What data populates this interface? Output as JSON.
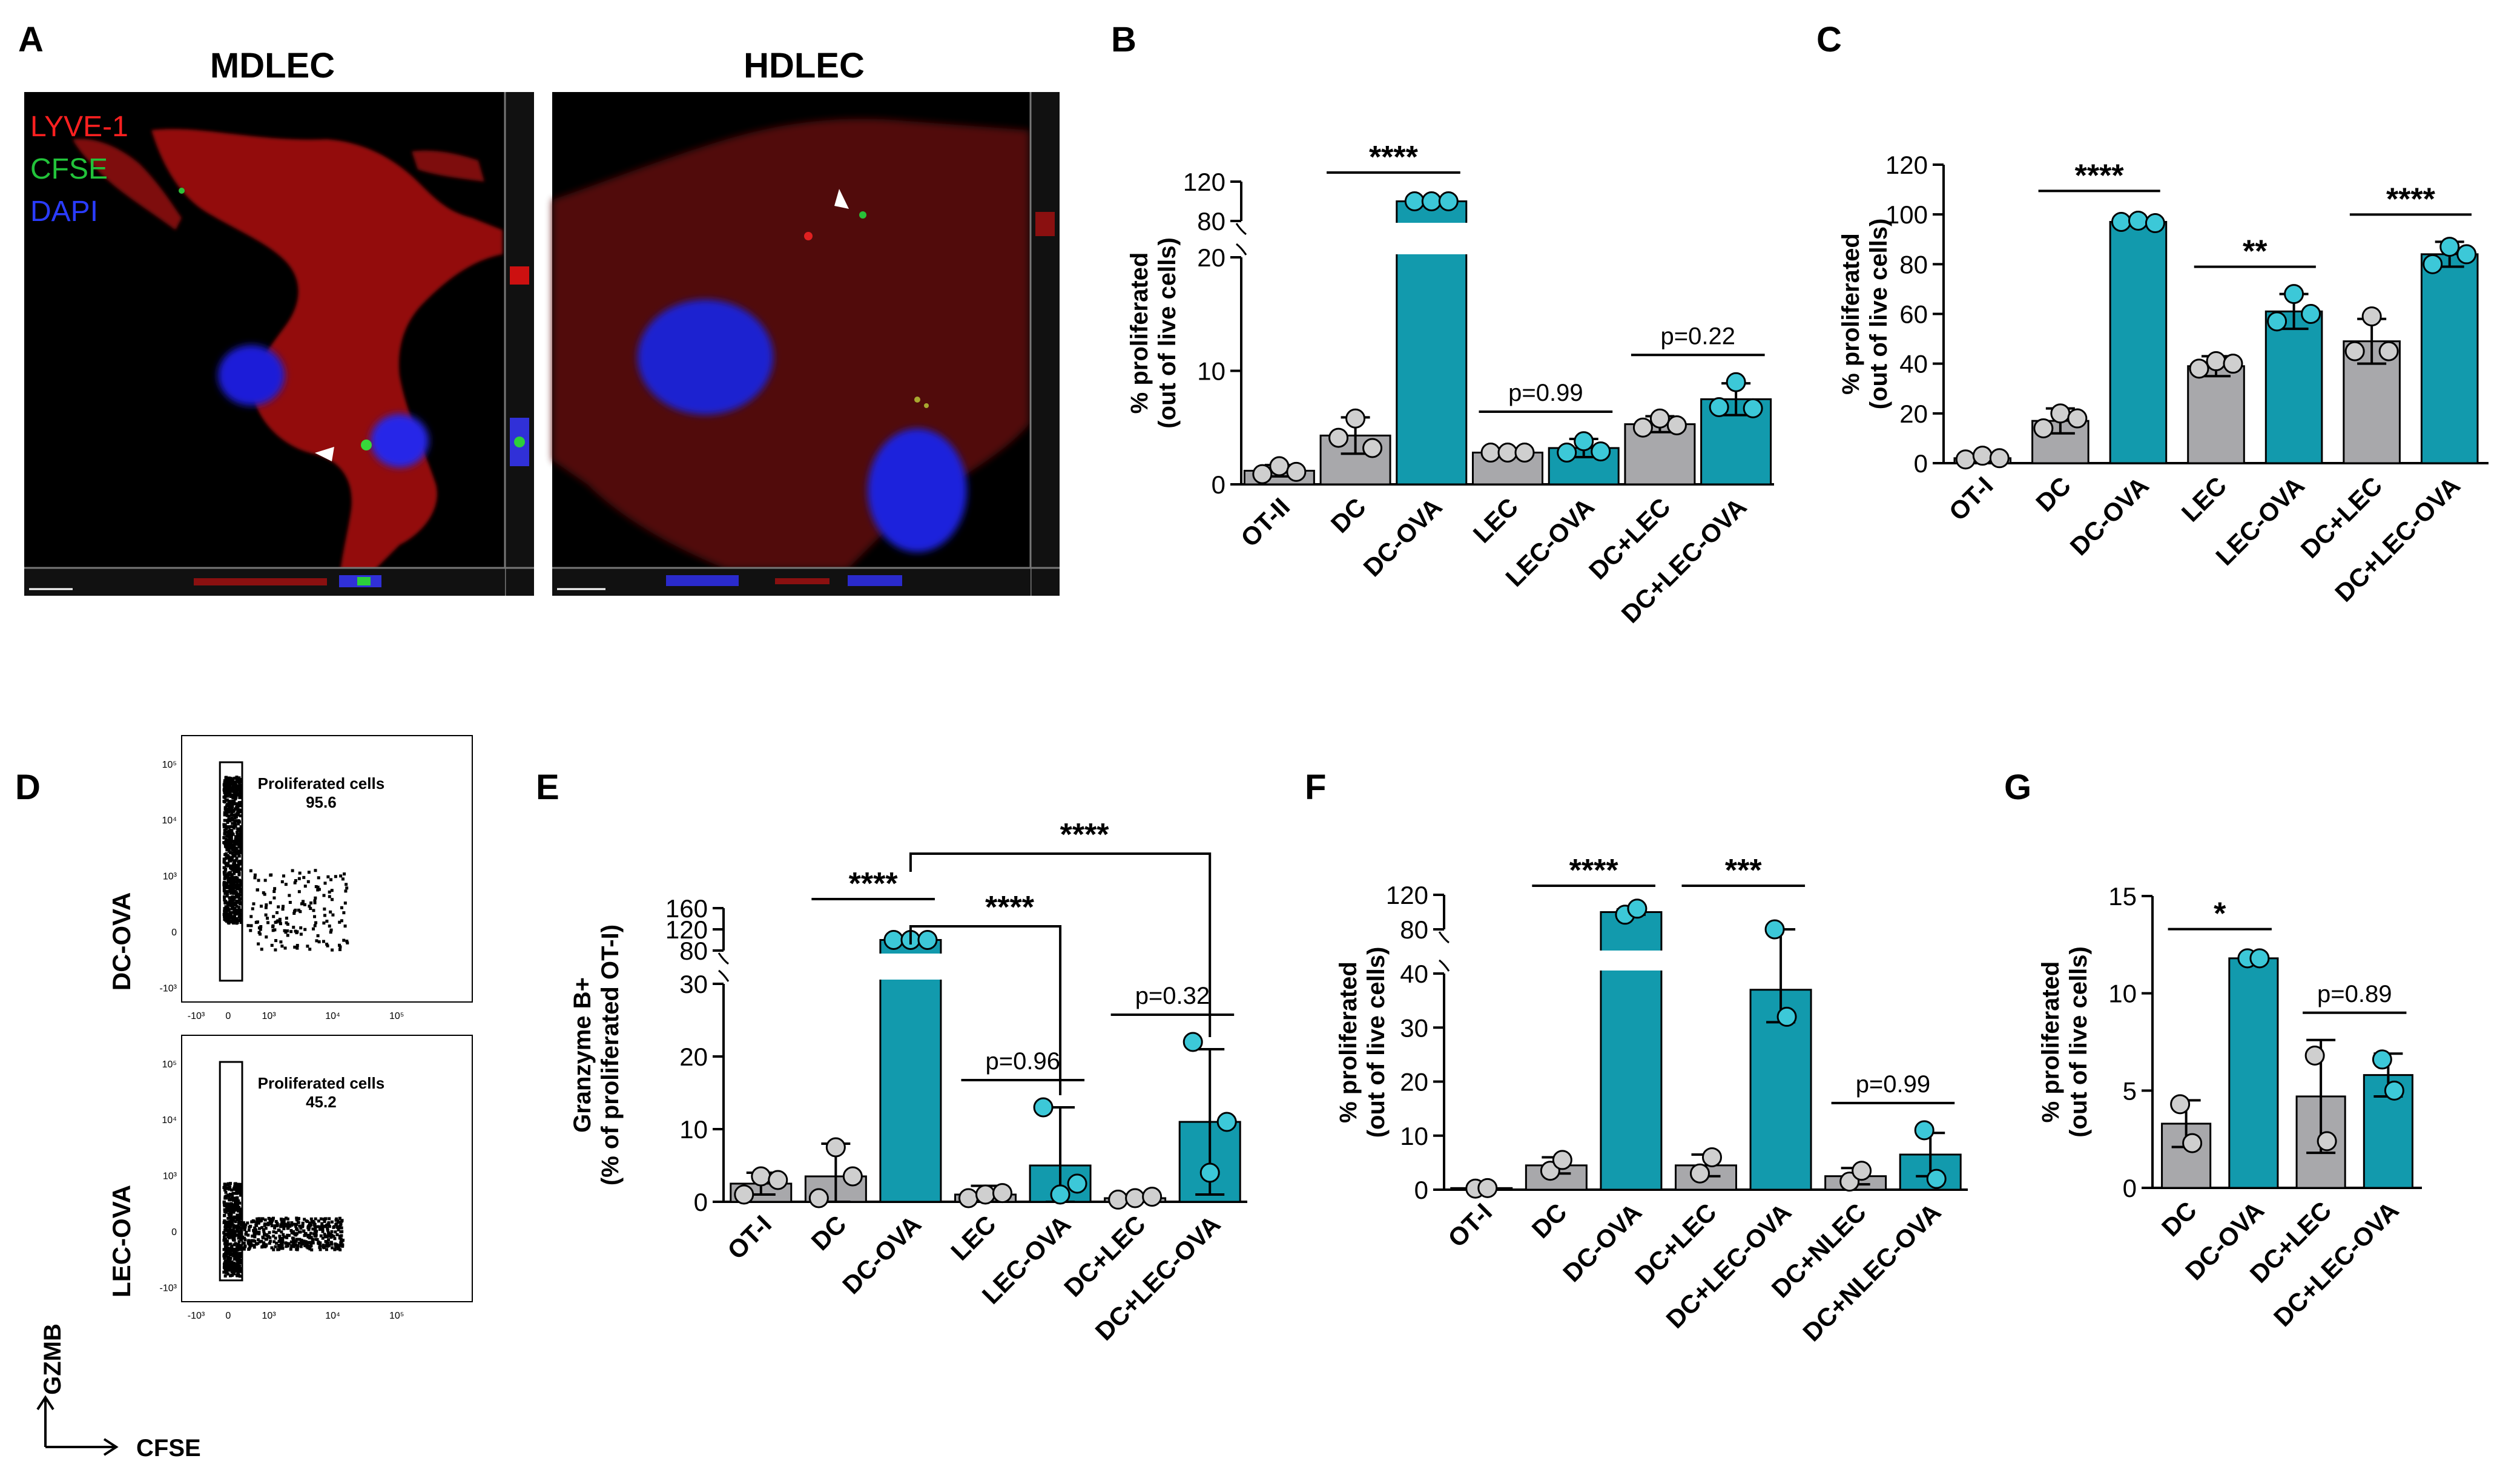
{
  "colors": {
    "gray": "#a8a8ab",
    "teal": "#129aad",
    "teal_dot": "#3cc8d8",
    "gray_dot": "#cfcfcf"
  },
  "panelA": {
    "letter": "A",
    "title_left": "MDLEC",
    "title_right": "HDLEC",
    "legend": [
      {
        "label": "LYVE-1",
        "color": "#ff2020"
      },
      {
        "label": "CFSE",
        "color": "#22c33a"
      },
      {
        "label": "DAPI",
        "color": "#2a3cff"
      }
    ]
  },
  "panelD": {
    "letter": "D",
    "plots": [
      {
        "row_label": "DC-OVA",
        "gate_label": "Proliferated cells",
        "gate_value": "95.6",
        "pattern": "high"
      },
      {
        "row_label": "LEC-OVA",
        "gate_label": "Proliferated cells",
        "gate_value": "45.2",
        "pattern": "low"
      }
    ],
    "y_axis_name": "GZMB",
    "x_axis_name": "CFSE",
    "ticks": [
      "-10³",
      "0",
      "10³",
      "10⁴",
      "10⁵"
    ]
  },
  "chart_data": [
    {
      "panel": "B",
      "type": "bar",
      "ylabel": "% proliferated\n(out of live cells)",
      "categories": [
        "OT-II",
        "DC",
        "DC-OVA",
        "LEC",
        "LEC-OVA",
        "DC+LEC",
        "DC+LEC-OVA"
      ],
      "values": [
        1.2,
        4.3,
        100,
        2.8,
        3.2,
        5.3,
        7.5
      ],
      "errors": [
        0.5,
        1.6,
        3,
        0.2,
        0.8,
        0.7,
        1.4
      ],
      "points": [
        [
          0.9,
          1.6,
          1.1
        ],
        [
          4.1,
          5.8,
          3.2
        ],
        [
          100,
          100,
          100
        ],
        [
          2.8,
          2.8,
          2.8
        ],
        [
          2.8,
          3.8,
          2.9
        ],
        [
          5.0,
          5.8,
          5.2
        ],
        [
          6.8,
          9.0,
          6.7
        ]
      ],
      "colors": [
        "gray",
        "gray",
        "teal",
        "gray",
        "teal",
        "gray",
        "teal"
      ],
      "broken_axis": true,
      "yticks_lower": [
        0,
        10,
        20
      ],
      "yticks_upper": [
        80,
        120
      ],
      "comparisons": [
        {
          "from": 1,
          "to": 2,
          "label": "****"
        },
        {
          "from": 3,
          "to": 4,
          "label": "p=0.99"
        },
        {
          "from": 5,
          "to": 6,
          "label": "p=0.22"
        }
      ]
    },
    {
      "panel": "C",
      "type": "bar",
      "ylabel": "% proliferated\n(out of live cells)",
      "categories": [
        "OT-I",
        "DC",
        "DC-OVA",
        "LEC",
        "LEC-OVA",
        "DC+LEC",
        "DC+LEC-OVA"
      ],
      "values": [
        2,
        17,
        97,
        39,
        61,
        49,
        84
      ],
      "errors": [
        1.5,
        5,
        1.5,
        4,
        7,
        9,
        5
      ],
      "points": [
        [
          1.5,
          3,
          2
        ],
        [
          14,
          20,
          18
        ],
        [
          97,
          97.5,
          96.5
        ],
        [
          38,
          41,
          40
        ],
        [
          57,
          68,
          60
        ],
        [
          45,
          59,
          45
        ],
        [
          80,
          87,
          84
        ]
      ],
      "colors": [
        "gray",
        "gray",
        "teal",
        "gray",
        "teal",
        "gray",
        "teal"
      ],
      "ylim": [
        0,
        120
      ],
      "yticks": [
        0,
        20,
        40,
        60,
        80,
        100,
        120
      ],
      "comparisons": [
        {
          "from": 1,
          "to": 2,
          "label": "****"
        },
        {
          "from": 3,
          "to": 4,
          "label": "**"
        },
        {
          "from": 5,
          "to": 6,
          "label": "****"
        }
      ]
    },
    {
      "panel": "E",
      "type": "bar",
      "ylabel": "Granzyme B+\n(% of proliferated OT-I)",
      "categories": [
        "OT-I",
        "DC",
        "DC-OVA",
        "LEC",
        "LEC-OVA",
        "DC+LEC",
        "DC+LEC-OVA"
      ],
      "values": [
        2.5,
        3.5,
        100,
        1.0,
        5.0,
        0.5,
        11
      ],
      "errors": [
        1.5,
        4.5,
        3,
        1.2,
        8,
        0.5,
        10
      ],
      "points": [
        [
          1,
          3.5,
          3
        ],
        [
          0.5,
          7.5,
          3.5
        ],
        [
          100,
          100,
          100
        ],
        [
          0.5,
          1,
          1.2
        ],
        [
          13,
          1,
          2.5
        ],
        [
          0.3,
          0.5,
          0.7
        ],
        [
          22,
          4,
          11
        ]
      ],
      "colors": [
        "gray",
        "gray",
        "teal",
        "gray",
        "teal",
        "gray",
        "teal"
      ],
      "broken_axis": true,
      "yticks_lower": [
        0,
        10,
        20,
        30
      ],
      "yticks_upper": [
        80,
        120,
        160
      ],
      "comparisons": [
        {
          "from": 1,
          "to": 2,
          "label": "****"
        },
        {
          "from": 3,
          "to": 4,
          "label": "p=0.96"
        },
        {
          "from": 5,
          "to": 6,
          "label": "p=0.32"
        }
      ],
      "bracket_comparisons": [
        {
          "from": 2,
          "to": 4,
          "label": "****"
        },
        {
          "from": 2,
          "to": 6,
          "label": "****"
        }
      ]
    },
    {
      "panel": "F",
      "type": "bar",
      "ylabel": "% proliferated\n(out of live cells)",
      "categories": [
        "OT-I",
        "DC",
        "DC-OVA",
        "DC+LEC",
        "DC+LEC-OVA",
        "DC+NLEC",
        "DC+NLEC-OVA"
      ],
      "values": [
        0.3,
        4.5,
        100,
        4.5,
        37,
        2.5,
        6.5
      ],
      "errors": [
        0.2,
        1.5,
        3,
        2,
        6,
        1.5,
        4
      ],
      "points": [
        [
          0.2,
          0.3
        ],
        [
          3.5,
          5.5
        ],
        [
          97,
          104
        ],
        [
          3,
          6
        ],
        [
          42,
          32
        ],
        [
          1.5,
          3.5
        ],
        [
          11,
          2
        ]
      ],
      "colors": [
        "gray",
        "gray",
        "teal",
        "gray",
        "teal",
        "gray",
        "teal"
      ],
      "broken_axis": true,
      "yticks_lower": [
        0,
        10,
        20,
        30,
        40
      ],
      "yticks_upper": [
        80,
        120
      ],
      "comparisons": [
        {
          "from": 1,
          "to": 2,
          "label": "****"
        },
        {
          "from": 3,
          "to": 4,
          "label": "***"
        },
        {
          "from": 5,
          "to": 6,
          "label": "p=0.99"
        }
      ]
    },
    {
      "panel": "G",
      "type": "bar",
      "ylabel": "% proliferated\n(out of live cells)",
      "categories": [
        "DC",
        "DC-OVA",
        "DC+LEC",
        "DC+LEC-OVA"
      ],
      "values": [
        3.3,
        11.8,
        4.7,
        5.8
      ],
      "errors": [
        1.2,
        0.1,
        2.9,
        1.1
      ],
      "points": [
        [
          4.3,
          2.3
        ],
        [
          11.8,
          11.8
        ],
        [
          6.8,
          2.4
        ],
        [
          6.6,
          5.0
        ]
      ],
      "colors": [
        "gray",
        "teal",
        "gray",
        "teal"
      ],
      "ylim": [
        0,
        15
      ],
      "yticks": [
        0,
        5,
        10,
        15
      ],
      "comparisons": [
        {
          "from": 0,
          "to": 1,
          "label": "*"
        },
        {
          "from": 2,
          "to": 3,
          "label": "p=0.89"
        }
      ]
    }
  ]
}
